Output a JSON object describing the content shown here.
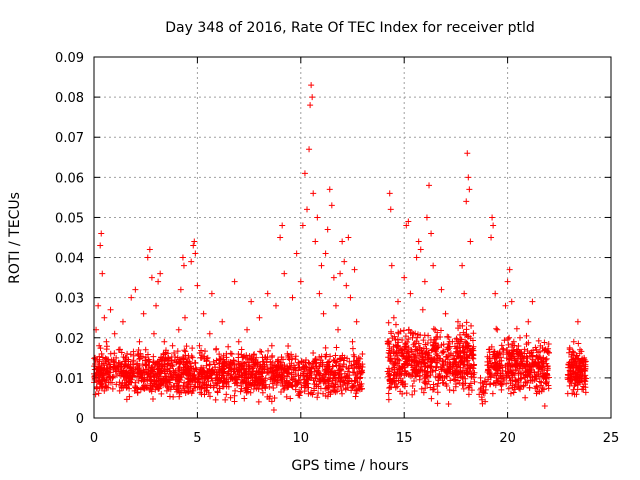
{
  "chart_data": {
    "type": "scatter",
    "title": "Day 348 of 2016, Rate Of TEC Index for receiver ptld",
    "xlabel": "GPS time / hours",
    "ylabel": "ROTI / TECUs",
    "xlim": [
      0,
      25
    ],
    "ylim": [
      0,
      0.09
    ],
    "xticks": [
      0,
      5,
      10,
      15,
      20,
      25
    ],
    "xtick_labels": [
      "0",
      "5",
      "10",
      "15",
      "20",
      "25"
    ],
    "yticks": [
      0,
      0.01,
      0.02,
      0.03,
      0.04,
      0.05,
      0.06,
      0.07,
      0.08,
      0.09
    ],
    "ytick_labels": [
      "0",
      "0.01",
      "0.02",
      "0.03",
      "0.04",
      "0.05",
      "0.06",
      "0.07",
      "0.08",
      "0.09"
    ],
    "grid": true,
    "marker": "+",
    "series": [
      {
        "name": "ROTI",
        "color": "#ff0000",
        "points": [
          [
            0.0,
            0.011
          ],
          [
            0.05,
            0.015
          ],
          [
            0.1,
            0.022
          ],
          [
            0.15,
            0.009
          ],
          [
            0.2,
            0.028
          ],
          [
            0.25,
            0.018
          ],
          [
            0.3,
            0.043
          ],
          [
            0.35,
            0.046
          ],
          [
            0.4,
            0.036
          ],
          [
            0.45,
            0.012
          ],
          [
            0.5,
            0.025
          ],
          [
            0.55,
            0.008
          ],
          [
            0.6,
            0.019
          ],
          [
            0.7,
            0.014
          ],
          [
            0.8,
            0.027
          ],
          [
            0.9,
            0.01
          ],
          [
            1.0,
            0.021
          ],
          [
            1.1,
            0.013
          ],
          [
            1.2,
            0.017
          ],
          [
            1.3,
            0.008
          ],
          [
            1.4,
            0.024
          ],
          [
            1.5,
            0.011
          ],
          [
            1.6,
            0.016
          ],
          [
            1.7,
            0.009
          ],
          [
            1.8,
            0.03
          ],
          [
            1.9,
            0.014
          ],
          [
            2.0,
            0.032
          ],
          [
            2.1,
            0.012
          ],
          [
            2.2,
            0.019
          ],
          [
            2.3,
            0.01
          ],
          [
            2.4,
            0.026
          ],
          [
            2.5,
            0.017
          ],
          [
            2.6,
            0.04
          ],
          [
            2.7,
            0.042
          ],
          [
            2.8,
            0.035
          ],
          [
            2.9,
            0.021
          ],
          [
            3.0,
            0.028
          ],
          [
            3.1,
            0.034
          ],
          [
            3.2,
            0.036
          ],
          [
            3.3,
            0.013
          ],
          [
            3.4,
            0.019
          ],
          [
            3.5,
            0.009
          ],
          [
            3.6,
            0.015
          ],
          [
            3.7,
            0.011
          ],
          [
            3.8,
            0.018
          ],
          [
            3.9,
            0.008
          ],
          [
            4.0,
            0.014
          ],
          [
            4.1,
            0.022
          ],
          [
            4.2,
            0.032
          ],
          [
            4.3,
            0.04
          ],
          [
            4.35,
            0.038
          ],
          [
            4.4,
            0.025
          ],
          [
            4.5,
            0.012
          ],
          [
            4.6,
            0.009
          ],
          [
            4.7,
            0.039
          ],
          [
            4.8,
            0.043
          ],
          [
            4.85,
            0.044
          ],
          [
            4.9,
            0.041
          ],
          [
            5.0,
            0.033
          ],
          [
            5.1,
            0.018
          ],
          [
            5.2,
            0.011
          ],
          [
            5.3,
            0.026
          ],
          [
            5.4,
            0.01
          ],
          [
            5.5,
            0.015
          ],
          [
            5.6,
            0.021
          ],
          [
            5.7,
            0.031
          ],
          [
            5.8,
            0.008
          ],
          [
            5.9,
            0.017
          ],
          [
            6.0,
            0.012
          ],
          [
            6.2,
            0.024
          ],
          [
            6.4,
            0.016
          ],
          [
            6.6,
            0.01
          ],
          [
            6.8,
            0.034
          ],
          [
            7.0,
            0.019
          ],
          [
            7.2,
            0.013
          ],
          [
            7.4,
            0.022
          ],
          [
            7.6,
            0.029
          ],
          [
            7.8,
            0.009
          ],
          [
            8.0,
            0.025
          ],
          [
            8.2,
            0.014
          ],
          [
            8.4,
            0.031
          ],
          [
            8.6,
            0.018
          ],
          [
            8.7,
            0.002
          ],
          [
            8.8,
            0.028
          ],
          [
            9.0,
            0.045
          ],
          [
            9.1,
            0.048
          ],
          [
            9.2,
            0.036
          ],
          [
            9.4,
            0.015
          ],
          [
            9.6,
            0.03
          ],
          [
            9.8,
            0.041
          ],
          [
            10.0,
            0.034
          ],
          [
            10.1,
            0.048
          ],
          [
            10.2,
            0.061
          ],
          [
            10.3,
            0.052
          ],
          [
            10.4,
            0.067
          ],
          [
            10.45,
            0.078
          ],
          [
            10.5,
            0.083
          ],
          [
            10.55,
            0.08
          ],
          [
            10.6,
            0.056
          ],
          [
            10.7,
            0.044
          ],
          [
            10.8,
            0.05
          ],
          [
            10.9,
            0.031
          ],
          [
            11.0,
            0.038
          ],
          [
            11.1,
            0.026
          ],
          [
            11.2,
            0.041
          ],
          [
            11.3,
            0.047
          ],
          [
            11.4,
            0.057
          ],
          [
            11.5,
            0.053
          ],
          [
            11.6,
            0.035
          ],
          [
            11.7,
            0.028
          ],
          [
            11.8,
            0.022
          ],
          [
            11.9,
            0.036
          ],
          [
            12.0,
            0.044
          ],
          [
            12.1,
            0.039
          ],
          [
            12.2,
            0.033
          ],
          [
            12.3,
            0.045
          ],
          [
            12.4,
            0.03
          ],
          [
            12.5,
            0.019
          ],
          [
            12.6,
            0.037
          ],
          [
            12.7,
            0.024
          ],
          [
            12.8,
            0.015
          ],
          [
            12.9,
            0.011
          ],
          [
            14.3,
            0.056
          ],
          [
            14.35,
            0.052
          ],
          [
            14.4,
            0.038
          ],
          [
            14.5,
            0.025
          ],
          [
            14.6,
            0.016
          ],
          [
            14.7,
            0.029
          ],
          [
            14.8,
            0.012
          ],
          [
            14.9,
            0.006
          ],
          [
            15.0,
            0.035
          ],
          [
            15.1,
            0.048
          ],
          [
            15.2,
            0.049
          ],
          [
            15.3,
            0.031
          ],
          [
            15.4,
            0.02
          ],
          [
            15.5,
            0.014
          ],
          [
            15.6,
            0.04
          ],
          [
            15.7,
            0.044
          ],
          [
            15.8,
            0.042
          ],
          [
            15.9,
            0.027
          ],
          [
            16.0,
            0.034
          ],
          [
            16.1,
            0.05
          ],
          [
            16.2,
            0.058
          ],
          [
            16.3,
            0.046
          ],
          [
            16.4,
            0.038
          ],
          [
            16.5,
            0.022
          ],
          [
            16.6,
            0.015
          ],
          [
            16.7,
            0.011
          ],
          [
            16.8,
            0.032
          ],
          [
            17.0,
            0.026
          ],
          [
            17.2,
            0.019
          ],
          [
            17.4,
            0.013
          ],
          [
            17.6,
            0.024
          ],
          [
            17.8,
            0.038
          ],
          [
            17.9,
            0.031
          ],
          [
            18.0,
            0.054
          ],
          [
            18.05,
            0.066
          ],
          [
            18.1,
            0.06
          ],
          [
            18.15,
            0.057
          ],
          [
            18.2,
            0.044
          ],
          [
            18.3,
            0.015
          ],
          [
            18.4,
            0.009
          ],
          [
            19.2,
            0.045
          ],
          [
            19.25,
            0.05
          ],
          [
            19.3,
            0.048
          ],
          [
            19.4,
            0.031
          ],
          [
            19.5,
            0.022
          ],
          [
            19.6,
            0.013
          ],
          [
            19.7,
            0.007
          ],
          [
            19.8,
            0.017
          ],
          [
            19.9,
            0.028
          ],
          [
            20.0,
            0.034
          ],
          [
            20.1,
            0.037
          ],
          [
            20.2,
            0.029
          ],
          [
            20.3,
            0.019
          ],
          [
            20.4,
            0.012
          ],
          [
            20.5,
            0.008
          ],
          [
            20.6,
            0.02
          ],
          [
            20.8,
            0.015
          ],
          [
            21.0,
            0.024
          ],
          [
            21.2,
            0.029
          ],
          [
            21.4,
            0.017
          ],
          [
            21.6,
            0.011
          ],
          [
            21.8,
            0.003
          ],
          [
            21.9,
            0.009
          ],
          [
            23.0,
            0.008
          ],
          [
            23.1,
            0.013
          ],
          [
            23.2,
            0.019
          ],
          [
            23.3,
            0.01
          ],
          [
            23.4,
            0.024
          ],
          [
            23.5,
            0.017
          ],
          [
            23.6,
            0.009
          ],
          [
            23.7,
            0.015
          ]
        ],
        "clusters": [
          {
            "x_range": [
              0.0,
              13.0
            ],
            "y_center": 0.011,
            "spread": 0.005,
            "count": 1500
          },
          {
            "x_range": [
              14.2,
              18.4
            ],
            "y_center": 0.014,
            "spread": 0.007,
            "count": 600
          },
          {
            "x_range": [
              18.6,
              19.0
            ],
            "y_center": 0.007,
            "spread": 0.004,
            "count": 20
          },
          {
            "x_range": [
              19.0,
              22.0
            ],
            "y_center": 0.013,
            "spread": 0.006,
            "count": 400
          },
          {
            "x_range": [
              22.9,
              23.8
            ],
            "y_center": 0.012,
            "spread": 0.005,
            "count": 150
          }
        ]
      }
    ]
  }
}
